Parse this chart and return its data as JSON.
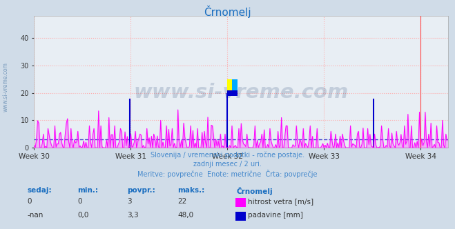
{
  "title": "Črnomelj",
  "title_color": "#1a6ec0",
  "bg_color": "#d0dce8",
  "plot_bg_color": "#e8eef4",
  "grid_color": "#ffaaaa",
  "x_tick_labels": [
    "Week 30",
    "Week 31",
    "Week 32",
    "Week 33",
    "Week 34"
  ],
  "y_ticks": [
    0,
    10,
    20,
    30,
    40
  ],
  "ylim": [
    0,
    48
  ],
  "xlim": [
    0,
    360
  ],
  "line1_color": "#ff00ff",
  "line2_color": "#0000cc",
  "avg_line_color": "#4444cc",
  "avg_line_value": 3.0,
  "subtitle1": "Slovenija / vremenski podatki - ročne postaje.",
  "subtitle2": "zadnji mesec / 2 uri.",
  "subtitle3": "Meritve: povprečne  Enote: metrične  Črta: povprečje",
  "subtitle_color": "#4488cc",
  "legend_title": "Črnomelj",
  "legend_label1": "hitrost vetra [m/s]",
  "legend_label2": "padavine [mm]",
  "stats_labels": [
    "sedaj:",
    "min.:",
    "povpr.:",
    "maks.:"
  ],
  "stats_row1": [
    "0",
    "0",
    "3",
    "22"
  ],
  "stats_row2": [
    "-nan",
    "0,0",
    "3,3",
    "48,0"
  ],
  "watermark": "www.si-vreme.com",
  "n_points": 360,
  "week_positions": [
    0,
    84,
    168,
    252,
    336
  ],
  "redline_x": 336,
  "logo_yellow": "#ffff00",
  "logo_cyan": "#00aaff",
  "logo_blue": "#0000cc"
}
